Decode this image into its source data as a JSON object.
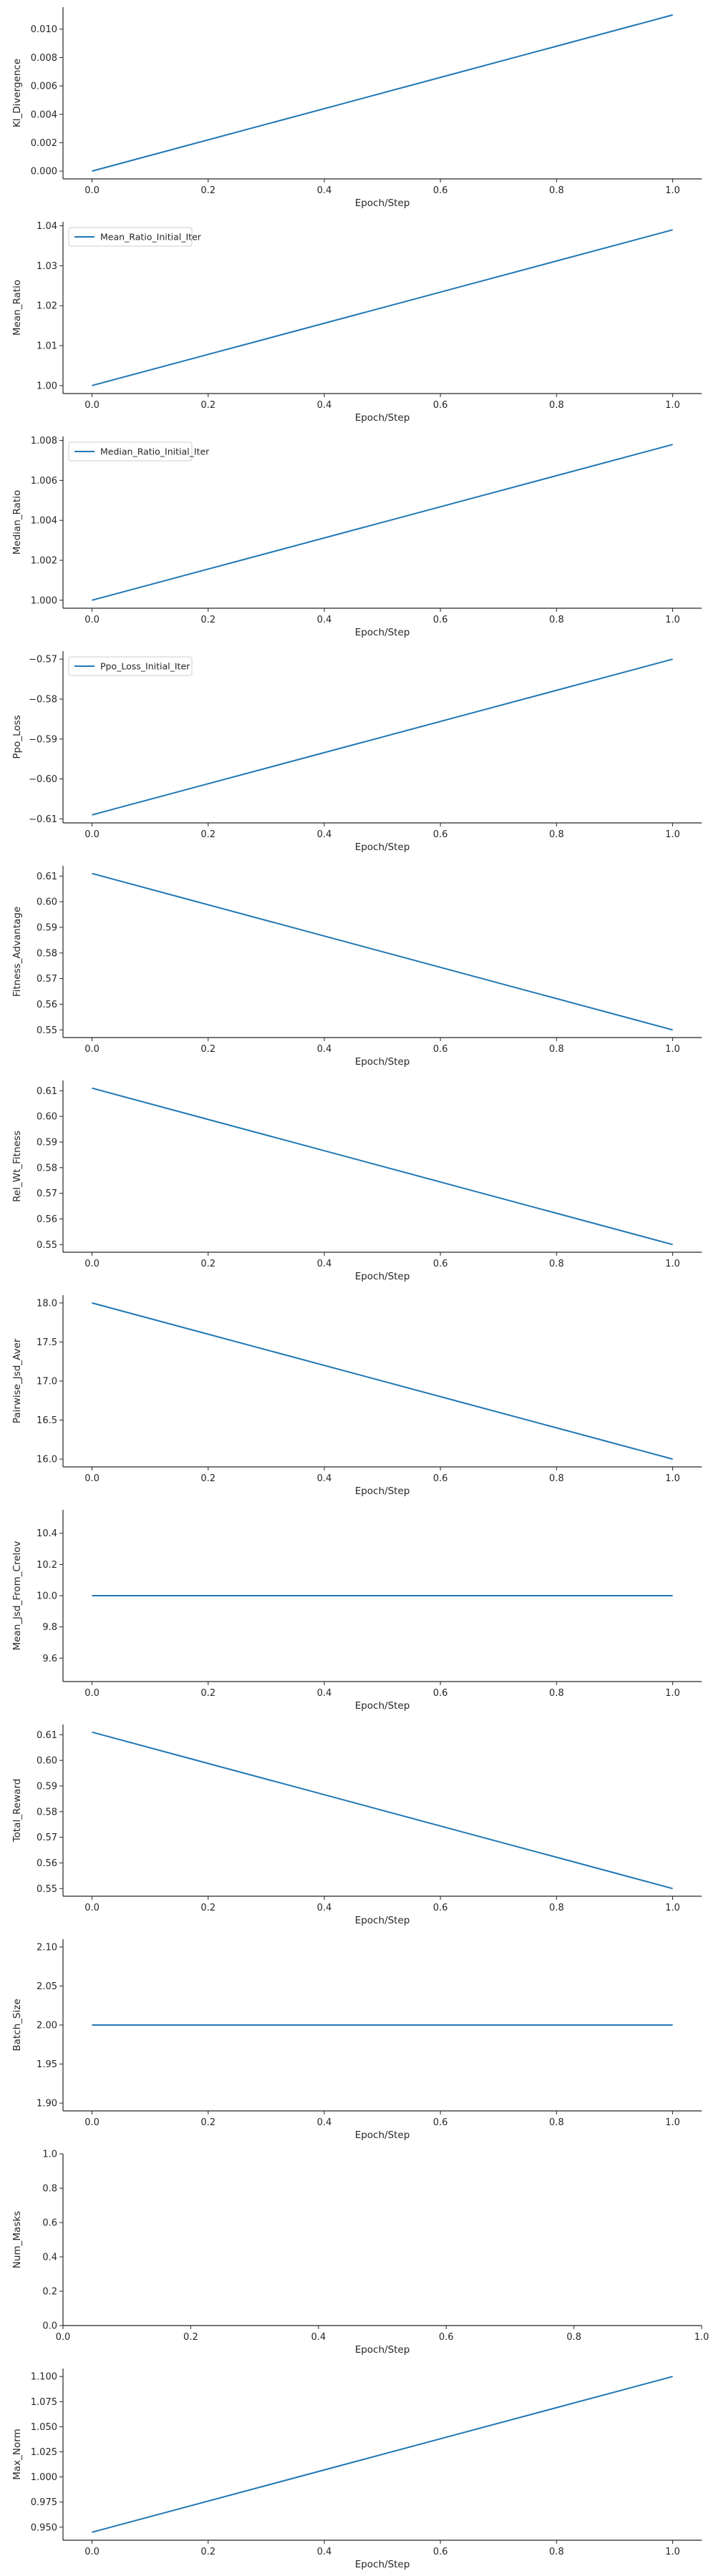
{
  "line_color": "#1f77b4",
  "axis_color": "#262626",
  "chart_data": [
    {
      "type": "line",
      "xlabel": "Epoch/Step",
      "ylabel": "Kl_Divergence",
      "xlim": [
        -0.05,
        1.05
      ],
      "ylim": [
        -0.00055,
        0.01155
      ],
      "xticks": [
        {
          "v": 0.0,
          "label": "0.0"
        },
        {
          "v": 0.2,
          "label": "0.2"
        },
        {
          "v": 0.4,
          "label": "0.4"
        },
        {
          "v": 0.6,
          "label": "0.6"
        },
        {
          "v": 0.8,
          "label": "0.8"
        },
        {
          "v": 1.0,
          "label": "1.0"
        }
      ],
      "yticks": [
        {
          "v": 0.0,
          "label": "0.000"
        },
        {
          "v": 0.002,
          "label": "0.002"
        },
        {
          "v": 0.004,
          "label": "0.004"
        },
        {
          "v": 0.006,
          "label": "0.006"
        },
        {
          "v": 0.008,
          "label": "0.008"
        },
        {
          "v": 0.01,
          "label": "0.010"
        }
      ],
      "legend": null,
      "series": [
        {
          "x": [
            0,
            1
          ],
          "y": [
            0.0,
            0.011
          ]
        }
      ]
    },
    {
      "type": "line",
      "xlabel": "Epoch/Step",
      "ylabel": "Mean_Ratio",
      "xlim": [
        -0.05,
        1.05
      ],
      "ylim": [
        0.998,
        1.041
      ],
      "xticks": [
        {
          "v": 0.0,
          "label": "0.0"
        },
        {
          "v": 0.2,
          "label": "0.2"
        },
        {
          "v": 0.4,
          "label": "0.4"
        },
        {
          "v": 0.6,
          "label": "0.6"
        },
        {
          "v": 0.8,
          "label": "0.8"
        },
        {
          "v": 1.0,
          "label": "1.0"
        }
      ],
      "yticks": [
        {
          "v": 1.0,
          "label": "1.00"
        },
        {
          "v": 1.01,
          "label": "1.01"
        },
        {
          "v": 1.02,
          "label": "1.02"
        },
        {
          "v": 1.03,
          "label": "1.03"
        },
        {
          "v": 1.04,
          "label": "1.04"
        }
      ],
      "legend": "Mean_Ratio_Initial_Iter",
      "series": [
        {
          "name": "Mean_Ratio_Initial_Iter",
          "x": [
            0,
            1
          ],
          "y": [
            1.0,
            1.039
          ]
        }
      ]
    },
    {
      "type": "line",
      "xlabel": "Epoch/Step",
      "ylabel": "Median_Ratio",
      "xlim": [
        -0.05,
        1.05
      ],
      "ylim": [
        0.9996,
        1.0082
      ],
      "xticks": [
        {
          "v": 0.0,
          "label": "0.0"
        },
        {
          "v": 0.2,
          "label": "0.2"
        },
        {
          "v": 0.4,
          "label": "0.4"
        },
        {
          "v": 0.6,
          "label": "0.6"
        },
        {
          "v": 0.8,
          "label": "0.8"
        },
        {
          "v": 1.0,
          "label": "1.0"
        }
      ],
      "yticks": [
        {
          "v": 1.0,
          "label": "1.000"
        },
        {
          "v": 1.002,
          "label": "1.002"
        },
        {
          "v": 1.004,
          "label": "1.004"
        },
        {
          "v": 1.006,
          "label": "1.006"
        },
        {
          "v": 1.008,
          "label": "1.008"
        }
      ],
      "legend": "Median_Ratio_Initial_Iter",
      "series": [
        {
          "name": "Median_Ratio_Initial_Iter",
          "x": [
            0,
            1
          ],
          "y": [
            1.0,
            1.0078
          ]
        }
      ]
    },
    {
      "type": "line",
      "xlabel": "Epoch/Step",
      "ylabel": "Ppo_Loss",
      "xlim": [
        -0.05,
        1.05
      ],
      "ylim": [
        -0.611,
        -0.568
      ],
      "xticks": [
        {
          "v": 0.0,
          "label": "0.0"
        },
        {
          "v": 0.2,
          "label": "0.2"
        },
        {
          "v": 0.4,
          "label": "0.4"
        },
        {
          "v": 0.6,
          "label": "0.6"
        },
        {
          "v": 0.8,
          "label": "0.8"
        },
        {
          "v": 1.0,
          "label": "1.0"
        }
      ],
      "yticks": [
        {
          "v": -0.61,
          "label": "−0.61"
        },
        {
          "v": -0.6,
          "label": "−0.60"
        },
        {
          "v": -0.59,
          "label": "−0.59"
        },
        {
          "v": -0.58,
          "label": "−0.58"
        },
        {
          "v": -0.57,
          "label": "−0.57"
        }
      ],
      "legend": "Ppo_Loss_Initial_Iter",
      "series": [
        {
          "name": "Ppo_Loss_Initial_Iter",
          "x": [
            0,
            1
          ],
          "y": [
            -0.609,
            -0.57
          ]
        }
      ]
    },
    {
      "type": "line",
      "xlabel": "Epoch/Step",
      "ylabel": "Fitness_Advantage",
      "xlim": [
        -0.05,
        1.05
      ],
      "ylim": [
        0.547,
        0.614
      ],
      "xticks": [
        {
          "v": 0.0,
          "label": "0.0"
        },
        {
          "v": 0.2,
          "label": "0.2"
        },
        {
          "v": 0.4,
          "label": "0.4"
        },
        {
          "v": 0.6,
          "label": "0.6"
        },
        {
          "v": 0.8,
          "label": "0.8"
        },
        {
          "v": 1.0,
          "label": "1.0"
        }
      ],
      "yticks": [
        {
          "v": 0.55,
          "label": "0.55"
        },
        {
          "v": 0.56,
          "label": "0.56"
        },
        {
          "v": 0.57,
          "label": "0.57"
        },
        {
          "v": 0.58,
          "label": "0.58"
        },
        {
          "v": 0.59,
          "label": "0.59"
        },
        {
          "v": 0.6,
          "label": "0.60"
        },
        {
          "v": 0.61,
          "label": "0.61"
        }
      ],
      "legend": null,
      "series": [
        {
          "x": [
            0,
            1
          ],
          "y": [
            0.611,
            0.55
          ]
        }
      ]
    },
    {
      "type": "line",
      "xlabel": "Epoch/Step",
      "ylabel": "Rel_Wt_Fitness",
      "xlim": [
        -0.05,
        1.05
      ],
      "ylim": [
        0.547,
        0.614
      ],
      "xticks": [
        {
          "v": 0.0,
          "label": "0.0"
        },
        {
          "v": 0.2,
          "label": "0.2"
        },
        {
          "v": 0.4,
          "label": "0.4"
        },
        {
          "v": 0.6,
          "label": "0.6"
        },
        {
          "v": 0.8,
          "label": "0.8"
        },
        {
          "v": 1.0,
          "label": "1.0"
        }
      ],
      "yticks": [
        {
          "v": 0.55,
          "label": "0.55"
        },
        {
          "v": 0.56,
          "label": "0.56"
        },
        {
          "v": 0.57,
          "label": "0.57"
        },
        {
          "v": 0.58,
          "label": "0.58"
        },
        {
          "v": 0.59,
          "label": "0.59"
        },
        {
          "v": 0.6,
          "label": "0.60"
        },
        {
          "v": 0.61,
          "label": "0.61"
        }
      ],
      "legend": null,
      "series": [
        {
          "x": [
            0,
            1
          ],
          "y": [
            0.611,
            0.55
          ]
        }
      ]
    },
    {
      "type": "line",
      "xlabel": "Epoch/Step",
      "ylabel": "Pairwise_Jsd_Aver",
      "xlim": [
        -0.05,
        1.05
      ],
      "ylim": [
        15.9,
        18.1
      ],
      "xticks": [
        {
          "v": 0.0,
          "label": "0.0"
        },
        {
          "v": 0.2,
          "label": "0.2"
        },
        {
          "v": 0.4,
          "label": "0.4"
        },
        {
          "v": 0.6,
          "label": "0.6"
        },
        {
          "v": 0.8,
          "label": "0.8"
        },
        {
          "v": 1.0,
          "label": "1.0"
        }
      ],
      "yticks": [
        {
          "v": 16.0,
          "label": "16.0"
        },
        {
          "v": 16.5,
          "label": "16.5"
        },
        {
          "v": 17.0,
          "label": "17.0"
        },
        {
          "v": 17.5,
          "label": "17.5"
        },
        {
          "v": 18.0,
          "label": "18.0"
        }
      ],
      "legend": null,
      "series": [
        {
          "x": [
            0,
            1
          ],
          "y": [
            18.0,
            16.0
          ]
        }
      ]
    },
    {
      "type": "line",
      "xlabel": "Epoch/Step",
      "ylabel": "Mean_Jsd_From_Crelov",
      "xlim": [
        -0.05,
        1.05
      ],
      "ylim": [
        9.45,
        10.55
      ],
      "xticks": [
        {
          "v": 0.0,
          "label": "0.0"
        },
        {
          "v": 0.2,
          "label": "0.2"
        },
        {
          "v": 0.4,
          "label": "0.4"
        },
        {
          "v": 0.6,
          "label": "0.6"
        },
        {
          "v": 0.8,
          "label": "0.8"
        },
        {
          "v": 1.0,
          "label": "1.0"
        }
      ],
      "yticks": [
        {
          "v": 9.6,
          "label": "9.6"
        },
        {
          "v": 9.8,
          "label": "9.8"
        },
        {
          "v": 10.0,
          "label": "10.0"
        },
        {
          "v": 10.2,
          "label": "10.2"
        },
        {
          "v": 10.4,
          "label": "10.4"
        }
      ],
      "legend": null,
      "series": [
        {
          "x": [
            0,
            1
          ],
          "y": [
            10.0,
            10.0
          ]
        }
      ]
    },
    {
      "type": "line",
      "xlabel": "Epoch/Step",
      "ylabel": "Total_Reward",
      "xlim": [
        -0.05,
        1.05
      ],
      "ylim": [
        0.547,
        0.614
      ],
      "xticks": [
        {
          "v": 0.0,
          "label": "0.0"
        },
        {
          "v": 0.2,
          "label": "0.2"
        },
        {
          "v": 0.4,
          "label": "0.4"
        },
        {
          "v": 0.6,
          "label": "0.6"
        },
        {
          "v": 0.8,
          "label": "0.8"
        },
        {
          "v": 1.0,
          "label": "1.0"
        }
      ],
      "yticks": [
        {
          "v": 0.55,
          "label": "0.55"
        },
        {
          "v": 0.56,
          "label": "0.56"
        },
        {
          "v": 0.57,
          "label": "0.57"
        },
        {
          "v": 0.58,
          "label": "0.58"
        },
        {
          "v": 0.59,
          "label": "0.59"
        },
        {
          "v": 0.6,
          "label": "0.60"
        },
        {
          "v": 0.61,
          "label": "0.61"
        }
      ],
      "legend": null,
      "series": [
        {
          "x": [
            0,
            1
          ],
          "y": [
            0.611,
            0.55
          ]
        }
      ]
    },
    {
      "type": "line",
      "xlabel": "Epoch/Step",
      "ylabel": "Batch_Size",
      "xlim": [
        -0.05,
        1.05
      ],
      "ylim": [
        1.89,
        2.11
      ],
      "xticks": [
        {
          "v": 0.0,
          "label": "0.0"
        },
        {
          "v": 0.2,
          "label": "0.2"
        },
        {
          "v": 0.4,
          "label": "0.4"
        },
        {
          "v": 0.6,
          "label": "0.6"
        },
        {
          "v": 0.8,
          "label": "0.8"
        },
        {
          "v": 1.0,
          "label": "1.0"
        }
      ],
      "yticks": [
        {
          "v": 1.9,
          "label": "1.90"
        },
        {
          "v": 1.95,
          "label": "1.95"
        },
        {
          "v": 2.0,
          "label": "2.00"
        },
        {
          "v": 2.05,
          "label": "2.05"
        },
        {
          "v": 2.1,
          "label": "2.10"
        }
      ],
      "legend": null,
      "series": [
        {
          "x": [
            0,
            1
          ],
          "y": [
            2.0,
            2.0
          ]
        }
      ]
    },
    {
      "type": "line",
      "xlabel": "Epoch/Step",
      "ylabel": "Num_Masks",
      "xlim": [
        0.0,
        1.0
      ],
      "ylim": [
        0.0,
        1.0
      ],
      "xticks": [
        {
          "v": 0.0,
          "label": "0.0"
        },
        {
          "v": 0.2,
          "label": "0.2"
        },
        {
          "v": 0.4,
          "label": "0.4"
        },
        {
          "v": 0.6,
          "label": "0.6"
        },
        {
          "v": 0.8,
          "label": "0.8"
        },
        {
          "v": 1.0,
          "label": "1.0"
        }
      ],
      "yticks": [
        {
          "v": 0.0,
          "label": "0.0"
        },
        {
          "v": 0.2,
          "label": "0.2"
        },
        {
          "v": 0.4,
          "label": "0.4"
        },
        {
          "v": 0.6,
          "label": "0.6"
        },
        {
          "v": 0.8,
          "label": "0.8"
        },
        {
          "v": 1.0,
          "label": "1.0"
        }
      ],
      "legend": null,
      "series": []
    },
    {
      "type": "line",
      "xlabel": "Epoch/Step",
      "ylabel": "Max_Norm",
      "xlim": [
        -0.05,
        1.05
      ],
      "ylim": [
        0.937,
        1.108
      ],
      "xticks": [
        {
          "v": 0.0,
          "label": "0.0"
        },
        {
          "v": 0.2,
          "label": "0.2"
        },
        {
          "v": 0.4,
          "label": "0.4"
        },
        {
          "v": 0.6,
          "label": "0.6"
        },
        {
          "v": 0.8,
          "label": "0.8"
        },
        {
          "v": 1.0,
          "label": "1.0"
        }
      ],
      "yticks": [
        {
          "v": 0.95,
          "label": "0.950"
        },
        {
          "v": 0.975,
          "label": "0.975"
        },
        {
          "v": 1.0,
          "label": "1.000"
        },
        {
          "v": 1.025,
          "label": "1.025"
        },
        {
          "v": 1.05,
          "label": "1.050"
        },
        {
          "v": 1.075,
          "label": "1.075"
        },
        {
          "v": 1.1,
          "label": "1.100"
        }
      ],
      "legend": null,
      "series": [
        {
          "x": [
            0,
            1
          ],
          "y": [
            0.945,
            1.1
          ]
        }
      ]
    }
  ]
}
